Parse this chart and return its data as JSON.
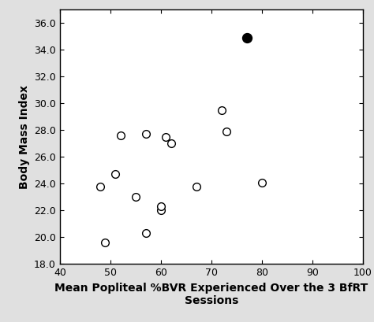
{
  "open_points": [
    [
      48,
      23.8
    ],
    [
      49,
      19.6
    ],
    [
      51,
      24.7
    ],
    [
      52,
      27.6
    ],
    [
      55,
      23.0
    ],
    [
      57,
      27.7
    ],
    [
      57,
      20.3
    ],
    [
      60,
      22.0
    ],
    [
      60,
      22.3
    ],
    [
      61,
      27.5
    ],
    [
      62,
      27.0
    ],
    [
      67,
      23.8
    ],
    [
      72,
      29.5
    ],
    [
      73,
      27.9
    ],
    [
      80,
      24.1
    ]
  ],
  "filled_points": [
    [
      77,
      34.9
    ]
  ],
  "xlabel": "Mean Popliteal %BVR Experienced Over the 3 BfRT\nSessions",
  "ylabel": "Body Mass Index",
  "xlim": [
    40,
    100
  ],
  "ylim": [
    18.0,
    37.0
  ],
  "xticks": [
    40,
    50,
    60,
    70,
    80,
    90,
    100
  ],
  "yticks": [
    18.0,
    20.0,
    22.0,
    24.0,
    26.0,
    28.0,
    30.0,
    32.0,
    34.0,
    36.0
  ],
  "open_color": "white",
  "open_edgecolor": "black",
  "filled_color": "black",
  "markersize": 7,
  "linewidth": 1.0,
  "background_color": "white",
  "outer_bg": "#e0e0e0",
  "axis_linewidth": 1.0,
  "tick_fontsize": 9,
  "label_fontsize": 10
}
